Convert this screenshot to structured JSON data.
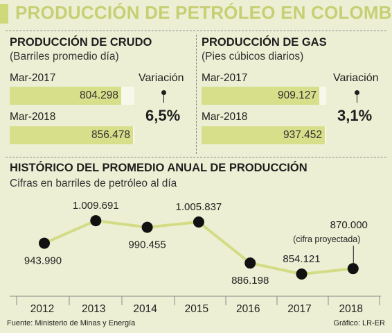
{
  "header": {
    "title": "PRODUCCIÓN DE PETRÓLEO EN COLOMBIA",
    "accent_color": "#cfd97a",
    "title_color": "#c6cf73"
  },
  "crude": {
    "title": "PRODUCCIÓN DE CRUDO",
    "subtitle": "(Barriles promedio día)",
    "rows": [
      {
        "period": "Mar-2017",
        "value_label": "804.298",
        "value": 804298
      },
      {
        "period": "Mar-2018",
        "value_label": "856.478",
        "value": 856478
      }
    ],
    "variation_label": "Variación",
    "variation_value": "6,5%"
  },
  "gas": {
    "title": "PRODUCCIÓN DE GAS",
    "subtitle": "(Pies cúbicos diarios)",
    "rows": [
      {
        "period": "Mar-2017",
        "value_label": "909.127",
        "value": 909127
      },
      {
        "period": "Mar-2018",
        "value_label": "937.452",
        "value": 937452
      }
    ],
    "variation_label": "Variación",
    "variation_value": "3,1%"
  },
  "history": {
    "title": "HISTÓRICO DEL PROMEDIO ANUAL DE PRODUCCIÓN",
    "subtitle": "Cifras en barriles de petróleo al día"
  },
  "chart_data": {
    "type": "line",
    "x": [
      "2012",
      "2013",
      "2014",
      "2015",
      "2016",
      "2017",
      "2018"
    ],
    "series": [
      {
        "values": [
          943990,
          1009691,
          990455,
          1005837,
          886198,
          854121,
          870000
        ],
        "labels": [
          "943.990",
          "1.009.691",
          "990.455",
          "1.005.837",
          "886.198",
          "854.121",
          "870.000"
        ],
        "color": "#d3dc85"
      }
    ],
    "annotation": "(cifra proyectada)",
    "ylim": [
      840000,
      1020000
    ],
    "grid": false
  },
  "footer": {
    "source": "Fuente: Ministerio de Minas y Energía",
    "credit": "Gráfico: LR-ER"
  }
}
